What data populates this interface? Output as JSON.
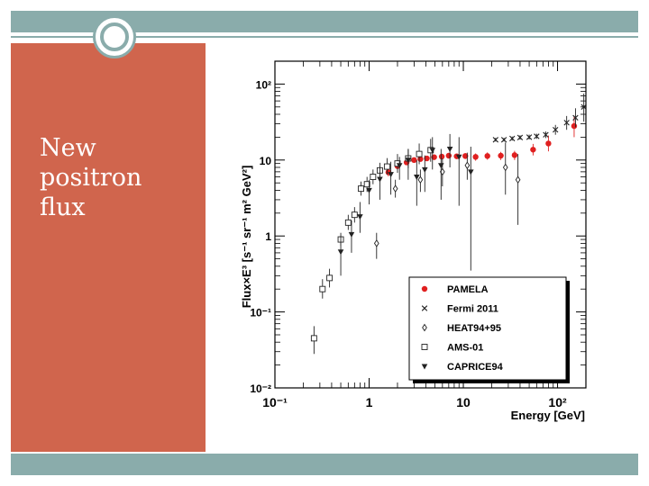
{
  "slide": {
    "title": "New\npositron\nflux",
    "colors": {
      "band": "#8aacab",
      "panel": "#d0654d",
      "title_text": "#ffffff"
    }
  },
  "chart_data": {
    "type": "scatter",
    "xlabel": "Energy [GeV]",
    "ylabel": "Flux×E³ [s⁻¹ sr⁻¹ m² GeV²]",
    "xscale": "log",
    "yscale": "log",
    "xlim": [
      0.1,
      200
    ],
    "ylim": [
      0.01,
      200
    ],
    "x_ticks": [
      {
        "value": 0.1,
        "label": "10⁻¹"
      },
      {
        "value": 1,
        "label": "1"
      },
      {
        "value": 10,
        "label": "10"
      },
      {
        "value": 100,
        "label": "10²"
      }
    ],
    "y_ticks": [
      {
        "value": 0.01,
        "label": "10⁻²"
      },
      {
        "value": 0.1,
        "label": "10⁻¹"
      },
      {
        "value": 1,
        "label": "1"
      },
      {
        "value": 10,
        "label": "10"
      },
      {
        "value": 100,
        "label": "10²"
      }
    ],
    "legend_position": "bottom-right",
    "series": [
      {
        "name": "PAMELA",
        "marker": "circle",
        "color": "#e02020",
        "points": [
          [
            1.6,
            6.9,
            6.1,
            7.7
          ],
          [
            2.0,
            8.3,
            7.6,
            9.0
          ],
          [
            2.5,
            9.3,
            8.7,
            10.0
          ],
          [
            3.0,
            10.0,
            9.4,
            10.6
          ],
          [
            3.5,
            10.3,
            9.7,
            11.0
          ],
          [
            4.1,
            10.5,
            9.9,
            11.2
          ],
          [
            4.9,
            10.9,
            10.2,
            11.6
          ],
          [
            5.9,
            11.1,
            10.3,
            11.8
          ],
          [
            7.0,
            11.4,
            10.6,
            12.2
          ],
          [
            8.5,
            11.2,
            10.3,
            12.0
          ],
          [
            10.5,
            11.3,
            10.3,
            12.3
          ],
          [
            13.5,
            11.0,
            9.8,
            12.2
          ],
          [
            18.0,
            11.3,
            10.1,
            12.6
          ],
          [
            25.0,
            11.4,
            10.0,
            12.8
          ],
          [
            35.0,
            11.6,
            10.0,
            13.2
          ],
          [
            55.0,
            13.7,
            11.5,
            16.3
          ],
          [
            80.0,
            16.5,
            13.0,
            21.0
          ],
          [
            150.0,
            28.0,
            20.0,
            38.0
          ]
        ]
      },
      {
        "name": "Fermi 2011",
        "marker": "x",
        "color": "#222222",
        "points": [
          [
            22.0,
            18.5,
            17.5,
            19.6
          ],
          [
            27.0,
            18.5,
            17.5,
            19.6
          ],
          [
            33.0,
            19.2,
            18.0,
            20.4
          ],
          [
            40.0,
            19.8,
            18.5,
            21.2
          ],
          [
            50.0,
            20.0,
            18.6,
            21.6
          ],
          [
            60.0,
            20.5,
            19.0,
            22.2
          ],
          [
            75.0,
            21.5,
            19.5,
            23.7
          ],
          [
            95.0,
            25.0,
            21.5,
            29.0
          ],
          [
            125.0,
            31.0,
            25.0,
            38.0
          ],
          [
            155.0,
            36.0,
            27.0,
            48.0
          ],
          [
            190.0,
            50.0,
            32.0,
            75.0
          ]
        ]
      },
      {
        "name": "HEAT94+95",
        "marker": "diamond",
        "color": "#222222",
        "points": [
          [
            1.2,
            0.8,
            0.5,
            1.1
          ],
          [
            1.9,
            4.2,
            3.2,
            5.5
          ],
          [
            3.5,
            5.5,
            3.8,
            7.5
          ],
          [
            6.0,
            7.0,
            4.5,
            10.5
          ],
          [
            11.0,
            8.5,
            5.5,
            12.5
          ],
          [
            28.0,
            8.0,
            3.5,
            17.0
          ],
          [
            38.0,
            5.5,
            1.4,
            12.0
          ]
        ]
      },
      {
        "name": "AMS-01",
        "marker": "square",
        "color": "#222222",
        "points": [
          [
            0.26,
            0.045,
            0.028,
            0.065
          ],
          [
            0.32,
            0.2,
            0.15,
            0.27
          ],
          [
            0.38,
            0.28,
            0.21,
            0.37
          ],
          [
            0.5,
            0.9,
            0.74,
            1.1
          ],
          [
            0.6,
            1.5,
            1.2,
            1.9
          ],
          [
            0.7,
            1.9,
            1.5,
            2.4
          ],
          [
            0.82,
            4.2,
            3.4,
            5.2
          ],
          [
            0.95,
            4.8,
            3.8,
            6.0
          ],
          [
            1.1,
            6.0,
            4.8,
            7.5
          ],
          [
            1.3,
            7.3,
            5.8,
            9.2
          ],
          [
            1.55,
            8.2,
            6.4,
            10.6
          ],
          [
            2.0,
            9.0,
            6.8,
            12.0
          ],
          [
            2.6,
            10.5,
            7.8,
            14.0
          ],
          [
            3.4,
            12.0,
            8.8,
            16.5
          ],
          [
            4.5,
            13.5,
            9.5,
            19.0
          ]
        ]
      },
      {
        "name": "CAPRICE94",
        "marker": "triangle-down",
        "color": "#222222",
        "points": [
          [
            0.5,
            0.62,
            0.3,
            1.0
          ],
          [
            0.65,
            1.05,
            0.6,
            1.6
          ],
          [
            0.8,
            1.8,
            1.1,
            2.8
          ],
          [
            1.0,
            4.0,
            2.6,
            5.5
          ],
          [
            1.3,
            5.6,
            3.0,
            8.2
          ],
          [
            1.7,
            6.5,
            3.5,
            9.5
          ],
          [
            2.1,
            8.5,
            5.5,
            11.0
          ],
          [
            2.6,
            10.0,
            5.5,
            14.0
          ],
          [
            3.2,
            6.0,
            2.5,
            10.0
          ],
          [
            3.9,
            7.5,
            3.8,
            11.5
          ],
          [
            4.7,
            13.5,
            7.5,
            20.0
          ],
          [
            5.8,
            8.5,
            3.0,
            14.0
          ],
          [
            7.2,
            14.0,
            8.0,
            22.0
          ],
          [
            9.0,
            11.0,
            2.5,
            20.0
          ],
          [
            12.0,
            7.0,
            0.35,
            15.0
          ]
        ]
      }
    ]
  }
}
